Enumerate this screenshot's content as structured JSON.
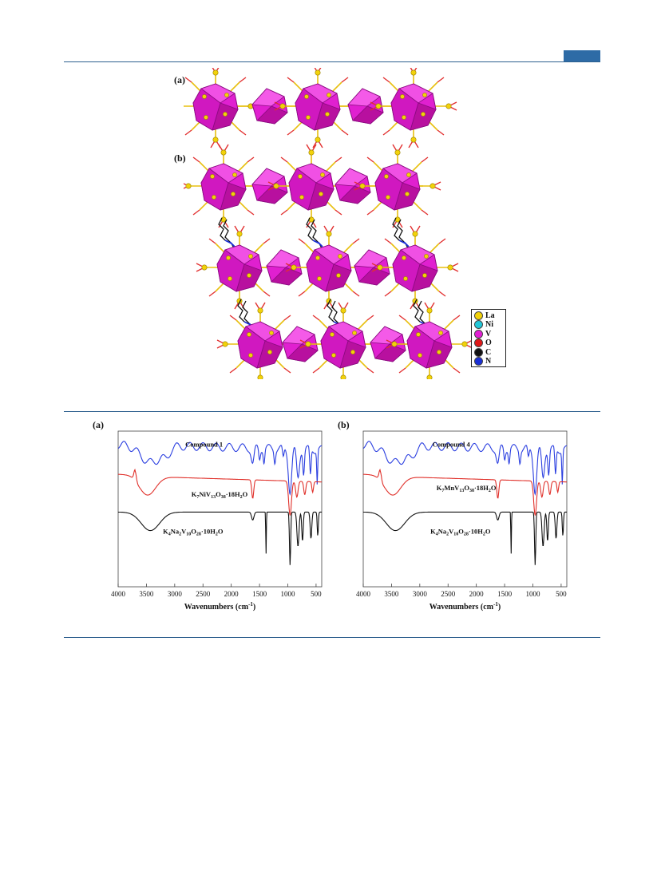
{
  "figure_top": {
    "panel_a_label": "(a)",
    "panel_b_label": "(b)",
    "legend": [
      {
        "label": "La",
        "color": "#f2d20a"
      },
      {
        "label": "Ni",
        "color": "#22c7d8"
      },
      {
        "label": "V",
        "color": "#e21fd4"
      },
      {
        "label": "O",
        "color": "#e01818"
      },
      {
        "label": "C",
        "color": "#111111"
      },
      {
        "label": "N",
        "color": "#1a2fd6"
      }
    ]
  },
  "chart_data": [
    {
      "type": "line",
      "panel_label": "(a)",
      "xlabel": "Wavenumbers (cm",
      "xlabel_sup": "-1",
      "xlabel_end": ")",
      "xlim": [
        4000,
        400
      ],
      "x_reversed": true,
      "xticks": [
        4000,
        3500,
        3000,
        2500,
        2000,
        1500,
        1000,
        500
      ],
      "series": [
        {
          "name": "Compound 1",
          "color": "#2b3fe0",
          "label_parts": [
            {
              "t": "Compound 1"
            }
          ]
        },
        {
          "name": "K7NiV13O38·18H2O",
          "color": "#e0302a",
          "label_parts": [
            {
              "t": "K"
            },
            {
              "s": "7"
            },
            {
              "t": "NiV"
            },
            {
              "s": "13"
            },
            {
              "t": "O"
            },
            {
              "s": "38"
            },
            {
              "t": "·18H"
            },
            {
              "s": "2"
            },
            {
              "t": "O"
            }
          ]
        },
        {
          "name": "K4Na2V10O28·10H2O",
          "color": "#111111",
          "label_parts": [
            {
              "t": "K"
            },
            {
              "s": "4"
            },
            {
              "t": "Na"
            },
            {
              "s": "2"
            },
            {
              "t": "V"
            },
            {
              "s": "10"
            },
            {
              "t": "O"
            },
            {
              "s": "28"
            },
            {
              "t": "·10H"
            },
            {
              "s": "2"
            },
            {
              "t": "O"
            }
          ]
        }
      ]
    },
    {
      "type": "line",
      "panel_label": "(b)",
      "xlabel": "Wavenumbers (cm",
      "xlabel_sup": "-1",
      "xlabel_end": ")",
      "xlim": [
        4000,
        400
      ],
      "x_reversed": true,
      "xticks": [
        4000,
        3500,
        3000,
        2500,
        2000,
        1500,
        1000,
        500
      ],
      "series": [
        {
          "name": "Compound 4",
          "color": "#2b3fe0",
          "label_parts": [
            {
              "t": "Compound 4"
            }
          ]
        },
        {
          "name": "K7MnV13O38·18H2O",
          "color": "#e0302a",
          "label_parts": [
            {
              "t": "K"
            },
            {
              "s": "7"
            },
            {
              "t": "MnV"
            },
            {
              "s": "13"
            },
            {
              "t": "O"
            },
            {
              "s": "38"
            },
            {
              "t": "·18H"
            },
            {
              "s": "2"
            },
            {
              "t": "O"
            }
          ]
        },
        {
          "name": "K4Na2V10O28·10H2O",
          "color": "#111111",
          "label_parts": [
            {
              "t": "K"
            },
            {
              "s": "4"
            },
            {
              "t": "Na"
            },
            {
              "s": "2"
            },
            {
              "t": "V"
            },
            {
              "s": "10"
            },
            {
              "t": "O"
            },
            {
              "s": "28"
            },
            {
              "t": "·10H"
            },
            {
              "s": "2"
            },
            {
              "t": "O"
            }
          ]
        }
      ]
    }
  ]
}
